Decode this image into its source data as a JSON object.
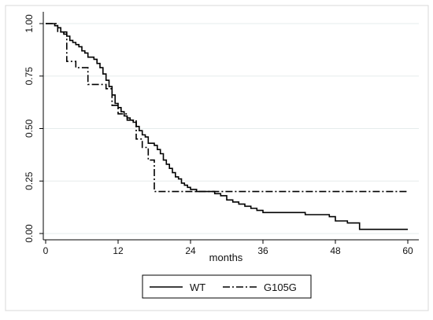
{
  "chart_data": {
    "type": "line",
    "xlabel": "months",
    "ylabel": "",
    "xlim": [
      0,
      60
    ],
    "ylim": [
      0,
      1
    ],
    "x_ticks": [
      "0",
      "12",
      "24",
      "36",
      "48",
      "60"
    ],
    "y_ticks": [
      "0.00",
      "0.25",
      "0.50",
      "0.75",
      "1.00"
    ],
    "grid": true,
    "legend_position": "bottom",
    "series": [
      {
        "name": "WT",
        "style": "solid",
        "color": "#000000",
        "points": [
          [
            0,
            1.0
          ],
          [
            1.5,
            0.99
          ],
          [
            2,
            0.98
          ],
          [
            2.5,
            0.96
          ],
          [
            3,
            0.95
          ],
          [
            3.5,
            0.94
          ],
          [
            4,
            0.92
          ],
          [
            4.5,
            0.91
          ],
          [
            5,
            0.9
          ],
          [
            5.5,
            0.89
          ],
          [
            6,
            0.87
          ],
          [
            6.5,
            0.86
          ],
          [
            7,
            0.84
          ],
          [
            8,
            0.83
          ],
          [
            8.5,
            0.81
          ],
          [
            9,
            0.79
          ],
          [
            9.5,
            0.76
          ],
          [
            10,
            0.73
          ],
          [
            10.5,
            0.7
          ],
          [
            11,
            0.66
          ],
          [
            11.5,
            0.62
          ],
          [
            12,
            0.6
          ],
          [
            12.5,
            0.58
          ],
          [
            13,
            0.56
          ],
          [
            13.5,
            0.55
          ],
          [
            14,
            0.54
          ],
          [
            14.5,
            0.53
          ],
          [
            15,
            0.51
          ],
          [
            15.5,
            0.49
          ],
          [
            16,
            0.47
          ],
          [
            16.5,
            0.46
          ],
          [
            17,
            0.43
          ],
          [
            18,
            0.42
          ],
          [
            18.5,
            0.4
          ],
          [
            19,
            0.38
          ],
          [
            19.5,
            0.35
          ],
          [
            20,
            0.33
          ],
          [
            20.5,
            0.31
          ],
          [
            21,
            0.29
          ],
          [
            21.5,
            0.27
          ],
          [
            22,
            0.26
          ],
          [
            22.5,
            0.24
          ],
          [
            23,
            0.23
          ],
          [
            23.5,
            0.22
          ],
          [
            24,
            0.21
          ],
          [
            25,
            0.2
          ],
          [
            28,
            0.19
          ],
          [
            29,
            0.18
          ],
          [
            30,
            0.16
          ],
          [
            31,
            0.15
          ],
          [
            32,
            0.14
          ],
          [
            33,
            0.13
          ],
          [
            34,
            0.12
          ],
          [
            35,
            0.11
          ],
          [
            36,
            0.1
          ],
          [
            43,
            0.09
          ],
          [
            47,
            0.08
          ],
          [
            48,
            0.06
          ],
          [
            50,
            0.05
          ],
          [
            52,
            0.02
          ],
          [
            60,
            0.02
          ]
        ]
      },
      {
        "name": "G105G",
        "style": "dashdot",
        "color": "#000000",
        "points": [
          [
            0,
            1.0
          ],
          [
            2,
            0.96
          ],
          [
            3.5,
            0.82
          ],
          [
            5,
            0.79
          ],
          [
            7,
            0.71
          ],
          [
            10,
            0.69
          ],
          [
            11,
            0.61
          ],
          [
            12,
            0.57
          ],
          [
            13.5,
            0.54
          ],
          [
            15,
            0.45
          ],
          [
            16,
            0.41
          ],
          [
            17,
            0.35
          ],
          [
            18,
            0.2
          ],
          [
            60,
            0.2
          ]
        ]
      }
    ]
  }
}
